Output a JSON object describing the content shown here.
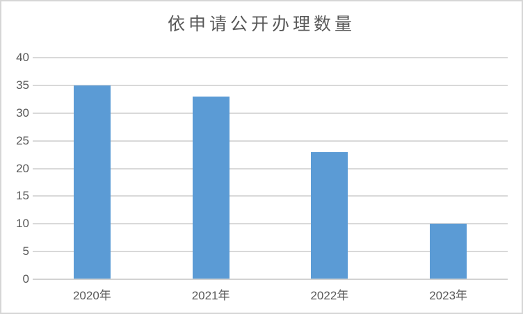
{
  "chart_data": {
    "type": "bar",
    "title": "依申请公开办理数量",
    "categories": [
      "2020年",
      "2021年",
      "2022年",
      "2023年"
    ],
    "values": [
      35,
      33,
      23,
      10
    ],
    "xlabel": "",
    "ylabel": "",
    "ylim": [
      0,
      40
    ],
    "yticks": [
      0,
      5,
      10,
      15,
      20,
      25,
      30,
      35,
      40
    ],
    "grid": true,
    "legend": "none",
    "colors": {
      "bar": "#5B9BD5",
      "gridline": "#D9D9D9",
      "axis_line": "#D2D2D2",
      "text": "#595959",
      "frame_border": "#D6D6D6",
      "background": "#FFFFFF"
    }
  }
}
